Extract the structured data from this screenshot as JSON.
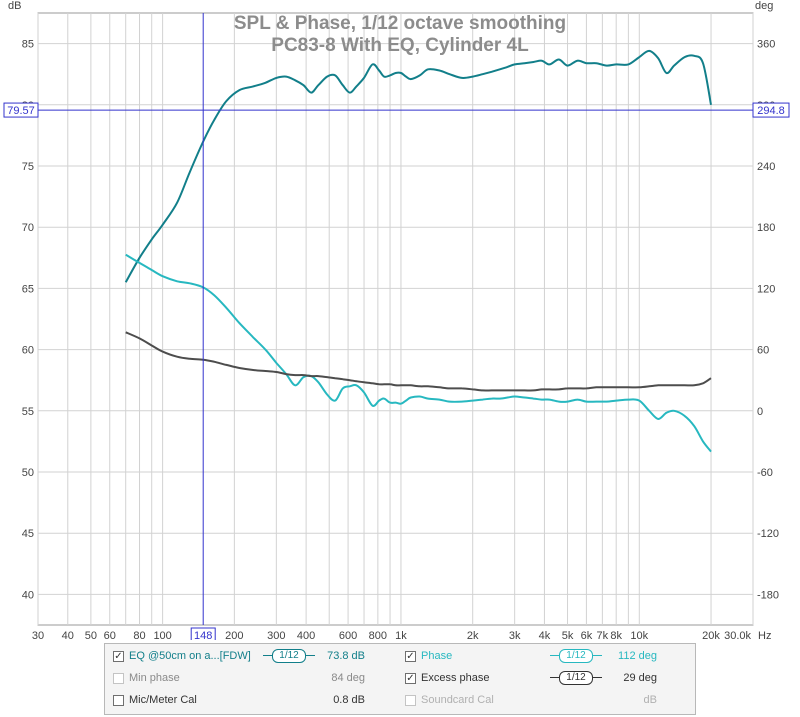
{
  "colors": {
    "eq": "#127f8a",
    "phase": "#27b8c0",
    "excess_phase": "#4d4d4d",
    "cursor": "#3333cc",
    "grid": "#d2d2d2",
    "title": "#8c8c8c"
  },
  "chart_data": {
    "type": "line",
    "title": "SPL & Phase, 1/12 octave smoothing",
    "subtitle": "PC83-8 With EQ, Cylinder 4L",
    "x_scale": "log",
    "xlim": [
      30,
      30000
    ],
    "x_unit": "Hz",
    "x_tick_labels": [
      "30",
      "40",
      "50",
      "60",
      "80",
      "100",
      "200",
      "300",
      "400",
      "600",
      "800",
      "1k",
      "2k",
      "3k",
      "4k",
      "5k",
      "6k",
      "7k",
      "8k",
      "10k",
      "20k",
      "30.0k"
    ],
    "x_tick_values": [
      30,
      40,
      50,
      60,
      80,
      100,
      200,
      300,
      400,
      600,
      800,
      1000,
      2000,
      3000,
      4000,
      5000,
      6000,
      7000,
      8000,
      10000,
      20000,
      30000
    ],
    "y_left_label": "dB",
    "y_left_lim": [
      37.5,
      87.5
    ],
    "y_left_ticks": [
      85,
      80,
      75,
      70,
      65,
      60,
      55,
      50,
      45,
      40
    ],
    "y_right_label": "deg",
    "y_right_lim": [
      -210,
      390
    ],
    "y_right_ticks": [
      360,
      300,
      240,
      180,
      120,
      60,
      0,
      -60,
      -120,
      -180
    ],
    "grid": true,
    "cursor": {
      "x_label": "148",
      "x": 148,
      "y_left_label": "79.57",
      "y_left": 79.57,
      "y_right_label": "294.8"
    },
    "series": [
      {
        "name": "EQ @50cm on a...[FDW]",
        "axis": "left",
        "x": [
          70,
          80,
          90,
          100,
          115,
          130,
          148,
          165,
          185,
          210,
          240,
          270,
          300,
          330,
          360,
          390,
          420,
          450,
          490,
          530,
          570,
          610,
          650,
          700,
          760,
          810,
          850,
          900,
          950,
          1000,
          1050,
          1100,
          1200,
          1300,
          1450,
          1600,
          1800,
          2000,
          2200,
          2400,
          2600,
          2800,
          3000,
          3300,
          3600,
          3900,
          4200,
          4600,
          5000,
          5500,
          6000,
          6600,
          7300,
          8000,
          9000,
          10000,
          11000,
          12000,
          13000,
          14000,
          15500,
          17000,
          18500,
          20000
        ],
        "values": [
          65.5,
          67.5,
          69,
          70.2,
          72,
          74.5,
          77,
          78.8,
          80.3,
          81.2,
          81.5,
          81.8,
          82.2,
          82.3,
          82,
          81.6,
          81,
          81.6,
          82.3,
          82.4,
          81.6,
          81,
          81.5,
          82.2,
          83.3,
          82.8,
          82.3,
          82.4,
          82.6,
          82.6,
          82.3,
          82.1,
          82.4,
          82.9,
          82.8,
          82.5,
          82.2,
          82.3,
          82.5,
          82.7,
          82.9,
          83.1,
          83.3,
          83.4,
          83.5,
          83.6,
          83.3,
          83.7,
          83.2,
          83.6,
          83.4,
          83.4,
          83.2,
          83.3,
          83.3,
          83.9,
          84.4,
          83.8,
          82.6,
          83.2,
          83.9,
          84,
          83.4,
          80
        ]
      },
      {
        "name": "Phase",
        "axis": "right",
        "x": [
          70,
          80,
          90,
          100,
          115,
          130,
          148,
          165,
          185,
          210,
          240,
          270,
          300,
          330,
          360,
          390,
          420,
          450,
          490,
          530,
          570,
          610,
          650,
          700,
          760,
          810,
          850,
          900,
          950,
          1000,
          1050,
          1100,
          1200,
          1300,
          1450,
          1600,
          1800,
          2000,
          2200,
          2400,
          2600,
          2800,
          3000,
          3300,
          3600,
          3900,
          4200,
          4600,
          5000,
          5500,
          6000,
          6600,
          7300,
          8000,
          9000,
          10000,
          11000,
          12000,
          13000,
          14000,
          15500,
          17000,
          18500,
          20000
        ],
        "values": [
          153,
          145,
          138,
          132,
          127,
          125,
          121,
          113,
          101,
          86,
          72,
          60,
          47,
          36,
          25,
          33,
          34,
          28,
          16,
          10,
          22,
          24,
          25,
          18,
          5,
          10,
          12,
          8,
          8,
          7,
          10,
          13,
          14,
          12,
          11,
          9,
          9,
          10,
          11,
          12,
          12,
          13,
          14,
          13,
          12,
          11,
          11,
          9,
          9,
          11,
          9,
          9,
          9,
          10,
          11,
          10,
          0,
          -8,
          -2,
          0,
          -5,
          -15,
          -30,
          -40
        ]
      },
      {
        "name": "Excess phase",
        "axis": "right",
        "x": [
          70,
          80,
          90,
          100,
          115,
          130,
          148,
          165,
          185,
          210,
          240,
          270,
          300,
          330,
          360,
          390,
          420,
          450,
          490,
          530,
          570,
          610,
          650,
          700,
          760,
          810,
          850,
          900,
          950,
          1000,
          1050,
          1100,
          1200,
          1300,
          1450,
          1600,
          1800,
          2000,
          2200,
          2400,
          2600,
          2800,
          3000,
          3300,
          3600,
          3900,
          4200,
          4600,
          5000,
          5500,
          6000,
          6600,
          7300,
          8000,
          9000,
          10000,
          11000,
          12000,
          13000,
          14000,
          15500,
          17000,
          18500,
          20000
        ],
        "values": [
          77,
          71,
          64,
          58,
          53,
          51,
          50,
          48,
          45,
          42,
          40,
          39,
          38,
          36,
          35,
          35,
          34,
          34,
          33,
          32,
          31,
          30,
          29,
          28,
          27,
          26,
          26,
          26,
          25,
          25,
          25,
          25,
          24,
          24,
          23,
          22,
          22,
          21,
          20,
          20,
          20,
          20,
          20,
          20,
          20,
          21,
          21,
          21,
          22,
          22,
          22,
          23,
          23,
          23,
          23,
          23,
          24,
          25,
          25,
          25,
          25,
          25,
          27,
          32
        ]
      }
    ]
  },
  "legend": {
    "eq": {
      "label": "EQ @50cm on a...[FDW]",
      "smoothing": "1/12",
      "value": "73.8 dB",
      "checked": true
    },
    "phase": {
      "label": "Phase",
      "smoothing": "1/12",
      "value": "112 deg",
      "checked": true
    },
    "min_phase": {
      "label": "Min phase",
      "value": "84 deg",
      "checked": false
    },
    "excess_phase": {
      "label": "Excess phase",
      "smoothing": "1/12",
      "value": "29 deg",
      "checked": true
    },
    "mic_cal": {
      "label": "Mic/Meter Cal",
      "value": "0.8 dB",
      "checked": false
    },
    "soundcard_cal": {
      "label": "Soundcard Cal",
      "value": "dB",
      "checked": false
    }
  }
}
